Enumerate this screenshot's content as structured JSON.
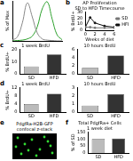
{
  "chart_data": [
    {
      "panel": "a",
      "type": "line",
      "y_label": "% of Max",
      "x": [
        0,
        10,
        20,
        30,
        40,
        50,
        60,
        70,
        80,
        90,
        100
      ],
      "xlim": [
        0,
        100
      ],
      "ylim": [
        0,
        100
      ],
      "tick_labels": false,
      "grid": false,
      "series": [
        {
          "color": "#888888",
          "values": [
            2,
            10,
            45,
            95,
            60,
            20,
            5,
            2,
            1,
            0,
            0
          ]
        },
        {
          "color": "#2ca02c",
          "values": [
            0,
            1,
            2,
            5,
            12,
            35,
            80,
            98,
            55,
            15,
            3
          ]
        }
      ]
    },
    {
      "panel": "b",
      "type": "line",
      "title": "AP Proliferation",
      "subtitle": "SD to HFD Timecourse",
      "x_label": "Weeks of diet",
      "y_label": "% BrdU+",
      "x": [
        0,
        1,
        2,
        4,
        6
      ],
      "xlim": [
        0,
        6
      ],
      "xticks": [
        0,
        2,
        4,
        6
      ],
      "ylim": [
        0,
        30
      ],
      "yticks": [
        0,
        10,
        20,
        30
      ],
      "legend": "right",
      "grid": false,
      "series": [
        {
          "name": "SD",
          "color": "#777777",
          "values": [
            5,
            5,
            4,
            4,
            4
          ]
        },
        {
          "name": "HFD",
          "color": "#111111",
          "values": [
            5,
            21,
            12,
            7,
            5
          ]
        }
      ]
    },
    {
      "panel": "c",
      "type": "bar",
      "title": "1 week BrdU",
      "y_label": "% BrdU+",
      "categories": [
        "SD",
        "HFD"
      ],
      "values": [
        6,
        16
      ],
      "colors": [
        "#bbbbbb",
        "#333333"
      ],
      "ylim": [
        0,
        20
      ],
      "yticks": [
        0,
        10,
        20
      ],
      "grid": false
    },
    {
      "type": "bar",
      "title": "10 hours BrdU",
      "categories": [
        "SD",
        "HFD"
      ],
      "values": [
        1.5,
        4.5
      ],
      "colors": [
        "#bbbbbb",
        "#333333"
      ],
      "ylim": [
        0,
        6
      ],
      "yticks": [
        0,
        2,
        4,
        6
      ],
      "grid": false
    },
    {
      "panel": "d",
      "type": "bar",
      "title": "1 week BrdU",
      "y_label": "% BrdU+",
      "categories": [
        "SD",
        "HFD"
      ],
      "values": [
        4,
        9
      ],
      "colors": [
        "#bbbbbb",
        "#333333"
      ],
      "ylim": [
        0,
        12
      ],
      "yticks": [
        0,
        4,
        8,
        12
      ],
      "grid": false
    },
    {
      "type": "bar",
      "title": "10 hours BrdU",
      "categories": [
        "SD",
        "HFD"
      ],
      "values": [
        0.8,
        2.2
      ],
      "colors": [
        "#bbbbbb",
        "#333333"
      ],
      "ylim": [
        0,
        3
      ],
      "yticks": [
        0,
        1,
        2,
        3
      ],
      "grid": false
    },
    {
      "panel": "e",
      "type": "image",
      "title": "PdgfRa-H2B-GFP",
      "subtitle": "confocal z-stack"
    },
    {
      "panel": "f",
      "type": "bar",
      "title": "Total PdgfRa+ Cells",
      "subtitle": "1 week diet",
      "y_label": "% of SD",
      "categories": [
        "SD",
        "HFD"
      ],
      "values": [
        100,
        104
      ],
      "colors": [
        "#bbbbbb",
        "#333333"
      ],
      "ylim": [
        0,
        150
      ],
      "yticks": [
        0,
        50,
        100,
        150
      ],
      "grid": false
    }
  ]
}
